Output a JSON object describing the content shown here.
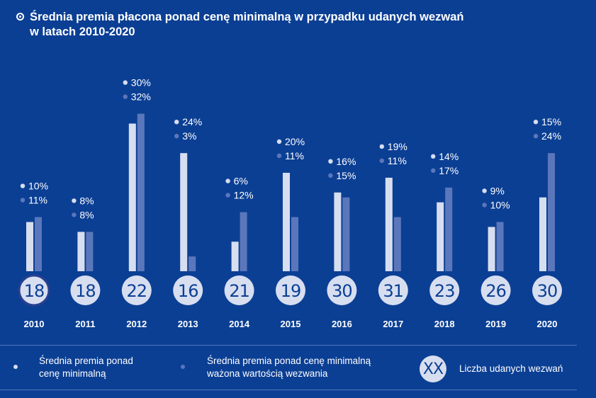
{
  "title": {
    "line1": "Średnia premia płacona ponad cenę minimalną w przypadku udanych wezwań",
    "line2": "w latach 2010-2020"
  },
  "colors": {
    "background": "#0b3f94",
    "series1": "#d7def0",
    "series2": "#5b77bb",
    "count_circle": "#d7def0",
    "count_text": "#0b3f94"
  },
  "chart_data": {
    "type": "bar",
    "categories": [
      "2010",
      "2011",
      "2012",
      "2013",
      "2014",
      "2015",
      "2016",
      "2017",
      "2018",
      "2019",
      "2020"
    ],
    "series": [
      {
        "name": "Średnia premia ponad cenę minimalną",
        "values": [
          10,
          8,
          30,
          24,
          6,
          20,
          16,
          19,
          14,
          9,
          15
        ],
        "labels": [
          "10%",
          "8%",
          "30%",
          "24%",
          "6%",
          "20%",
          "16%",
          "19%",
          "14%",
          "9%",
          "15%"
        ]
      },
      {
        "name": "Średnia premia ponad cenę minimalną ważona wartością wezwania",
        "values": [
          11,
          8,
          32,
          3,
          12,
          11,
          15,
          11,
          17,
          10,
          24
        ],
        "labels": [
          "11%",
          "8%",
          "32%",
          "3%",
          "12%",
          "11%",
          "15%",
          "11%",
          "17%",
          "10%",
          "24%"
        ]
      }
    ],
    "counts": [
      "18",
      "18",
      "22",
      "16",
      "21",
      "19",
      "30",
      "31",
      "23",
      "26",
      "30"
    ],
    "ylim": [
      0,
      32
    ],
    "grid": false
  },
  "legend": {
    "item1": {
      "line1": "Średnia premia ponad",
      "line2": "cenę minimalną"
    },
    "item2": {
      "line1": "Średnia premia ponad cenę minimalną",
      "line2": "ważona wartością wezwania"
    },
    "item3": {
      "symbol": "XX",
      "label": "Liczba udanych wezwań"
    }
  }
}
